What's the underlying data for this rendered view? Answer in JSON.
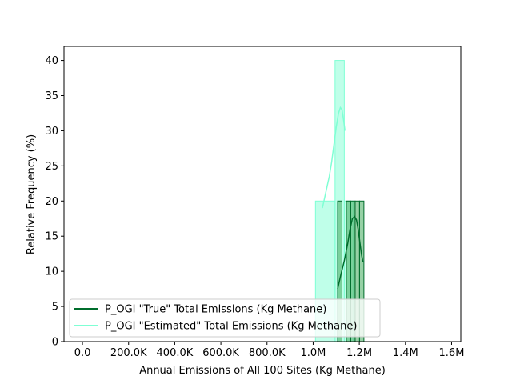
{
  "chart_data": {
    "type": "bar",
    "xlabel": "Annual Emissions of All 100 Sites (Kg Methane)",
    "ylabel": "Relative Frequency (%)",
    "xlim": [
      -80000,
      1640000
    ],
    "ylim": [
      0,
      42
    ],
    "x_ticks": [
      {
        "value": 0,
        "label": "0.0"
      },
      {
        "value": 200000,
        "label": "200.0K"
      },
      {
        "value": 400000,
        "label": "400.0K"
      },
      {
        "value": 600000,
        "label": "600.0K"
      },
      {
        "value": 800000,
        "label": "800.0K"
      },
      {
        "value": 1000000,
        "label": "1.0M"
      },
      {
        "value": 1200000,
        "label": "1.2M"
      },
      {
        "value": 1400000,
        "label": "1.4M"
      },
      {
        "value": 1600000,
        "label": "1.6M"
      }
    ],
    "y_ticks": [
      0,
      5,
      10,
      15,
      20,
      25,
      30,
      35,
      40
    ],
    "grid": false,
    "legend_position": "lower-left",
    "series": [
      {
        "name": "P_OGI \"True\" Total Emissions (Kg Methane)",
        "color": "#006d2c",
        "fill": "#41ab5d",
        "bins": [
          {
            "x0": 1106000,
            "x1": 1125000,
            "value": 20
          },
          {
            "x0": 1125000,
            "x1": 1144000,
            "value": 0
          },
          {
            "x0": 1144000,
            "x1": 1163000,
            "value": 20
          },
          {
            "x0": 1163000,
            "x1": 1182000,
            "value": 20
          },
          {
            "x0": 1182000,
            "x1": 1201000,
            "value": 20
          },
          {
            "x0": 1201000,
            "x1": 1220000,
            "value": 20
          }
        ],
        "kde": [
          [
            1106000,
            7.5
          ],
          [
            1120000,
            9.5
          ],
          [
            1135000,
            11.5
          ],
          [
            1150000,
            14.0
          ],
          [
            1160000,
            16.0
          ],
          [
            1170000,
            17.5
          ],
          [
            1180000,
            17.8
          ],
          [
            1188000,
            17.3
          ],
          [
            1195000,
            16.0
          ],
          [
            1203000,
            14.0
          ],
          [
            1210000,
            12.3
          ],
          [
            1216000,
            11.3
          ]
        ]
      },
      {
        "name": "P_OGI \"Estimated\" Total Emissions (Kg Methane)",
        "color": "#7fffd4",
        "fill": "#7fffd4",
        "bins": [
          {
            "x0": 1010000,
            "x1": 1095000,
            "value": 20
          },
          {
            "x0": 1095000,
            "x1": 1135000,
            "value": 40
          },
          {
            "x0": 1135000,
            "x1": 1175000,
            "value": 20
          }
        ],
        "kde": [
          [
            1040000,
            19.0
          ],
          [
            1050000,
            20.5
          ],
          [
            1060000,
            22.0
          ],
          [
            1070000,
            23.5
          ],
          [
            1080000,
            25.5
          ],
          [
            1090000,
            28.0
          ],
          [
            1100000,
            30.5
          ],
          [
            1110000,
            32.5
          ],
          [
            1118000,
            33.3
          ],
          [
            1125000,
            33.0
          ],
          [
            1132000,
            31.5
          ],
          [
            1138000,
            30.0
          ]
        ]
      }
    ]
  }
}
